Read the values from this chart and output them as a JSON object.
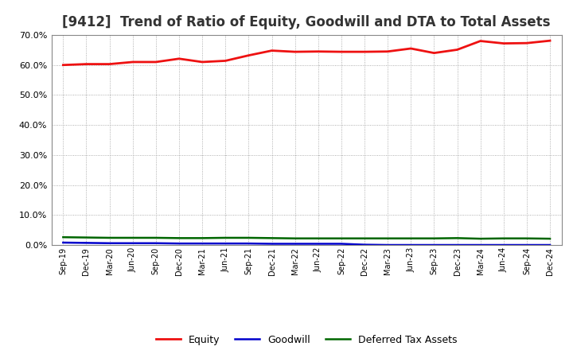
{
  "title": "[9412]  Trend of Ratio of Equity, Goodwill and DTA to Total Assets",
  "x_labels": [
    "Sep-19",
    "Dec-19",
    "Mar-20",
    "Jun-20",
    "Sep-20",
    "Dec-20",
    "Mar-21",
    "Jun-21",
    "Sep-21",
    "Dec-21",
    "Mar-22",
    "Jun-22",
    "Sep-22",
    "Dec-22",
    "Mar-23",
    "Jun-23",
    "Sep-23",
    "Dec-23",
    "Mar-24",
    "Jun-24",
    "Sep-24",
    "Dec-24"
  ],
  "equity": [
    0.6,
    0.603,
    0.603,
    0.61,
    0.61,
    0.621,
    0.61,
    0.614,
    0.632,
    0.648,
    0.644,
    0.645,
    0.644,
    0.644,
    0.645,
    0.655,
    0.64,
    0.651,
    0.68,
    0.672,
    0.673,
    0.681
  ],
  "goodwill": [
    0.008,
    0.007,
    0.006,
    0.006,
    0.006,
    0.005,
    0.005,
    0.005,
    0.005,
    0.004,
    0.004,
    0.004,
    0.004,
    0.001,
    0.0,
    0.0,
    0.0,
    0.0,
    0.0,
    0.0,
    0.0,
    0.0
  ],
  "dta": [
    0.026,
    0.025,
    0.024,
    0.024,
    0.024,
    0.023,
    0.023,
    0.024,
    0.024,
    0.023,
    0.022,
    0.022,
    0.022,
    0.022,
    0.022,
    0.022,
    0.022,
    0.023,
    0.021,
    0.022,
    0.022,
    0.021
  ],
  "equity_color": "#EE1111",
  "goodwill_color": "#0000CC",
  "dta_color": "#006600",
  "ylim": [
    0.0,
    0.7
  ],
  "yticks": [
    0.0,
    0.1,
    0.2,
    0.3,
    0.4,
    0.5,
    0.6,
    0.7
  ],
  "background_color": "#FFFFFF",
  "grid_color": "#999999",
  "title_fontsize": 12,
  "title_color": "#333333",
  "legend_labels": [
    "Equity",
    "Goodwill",
    "Deferred Tax Assets"
  ]
}
